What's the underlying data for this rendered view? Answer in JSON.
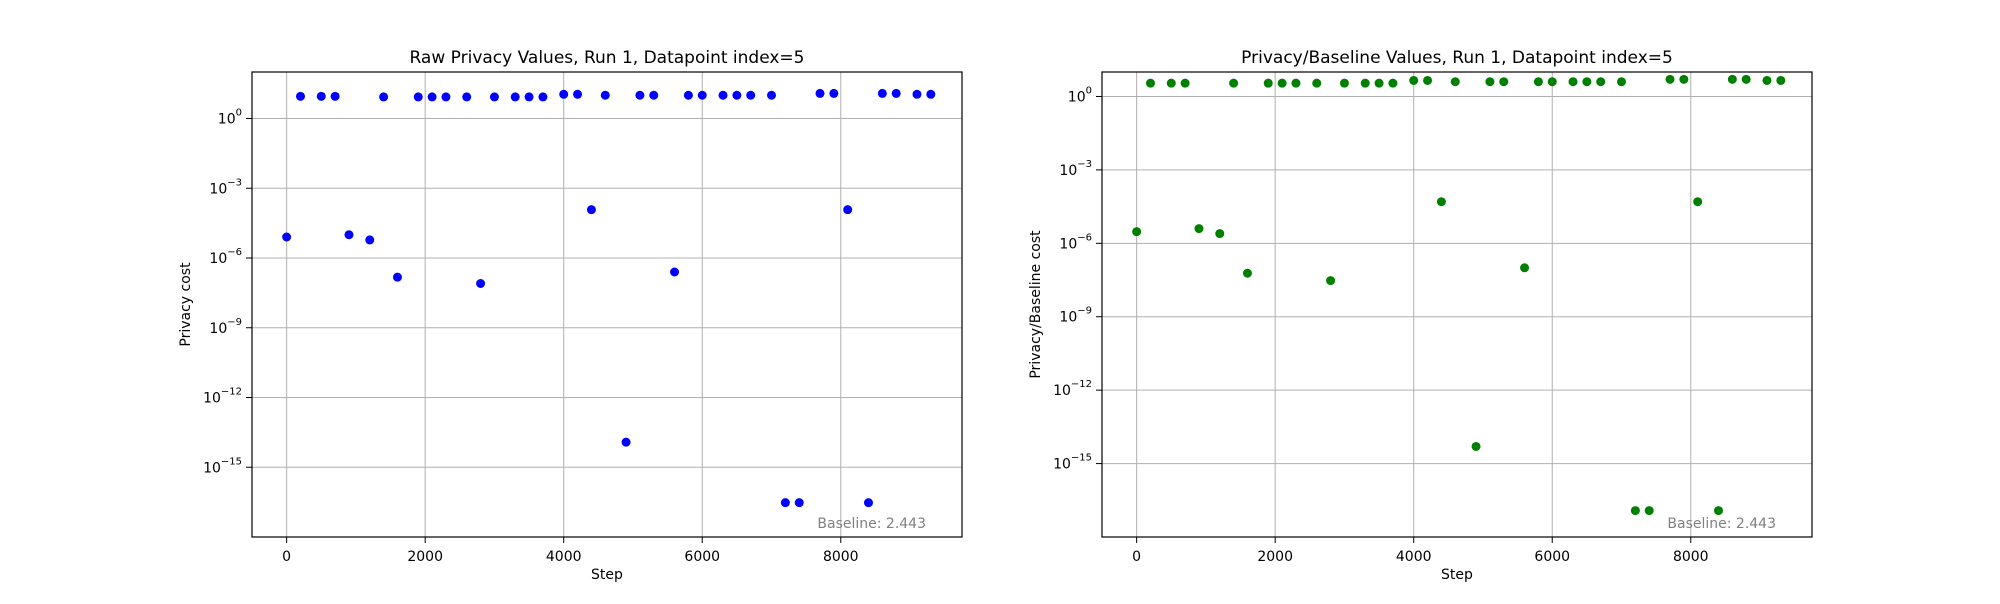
{
  "figure": {
    "background": "#ffffff"
  },
  "chart_data": [
    {
      "type": "scatter",
      "title": "Raw Privacy Values, Run 1, Datapoint index=5",
      "xlabel": "Step",
      "ylabel": "Privacy cost",
      "color": "#0000ff",
      "y_scale": "log",
      "xlim": [
        -500,
        9750
      ],
      "ylim": [
        1e-18,
        100.0
      ],
      "x_ticks": [
        0,
        2000,
        4000,
        6000,
        8000
      ],
      "x_tick_labels": [
        "0",
        "2000",
        "4000",
        "6000",
        "8000"
      ],
      "y_ticks": [
        1e-15,
        1e-12,
        1e-09,
        1e-06,
        0.001,
        1
      ],
      "y_tick_labels": [
        {
          "base": "10",
          "exp": "−15"
        },
        {
          "base": "10",
          "exp": "−12"
        },
        {
          "base": "10",
          "exp": "−9"
        },
        {
          "base": "10",
          "exp": "−6"
        },
        {
          "base": "10",
          "exp": "−3"
        },
        {
          "base": "10",
          "exp": "0"
        }
      ],
      "grid": true,
      "annotation": "Baseline: 2.443",
      "points": [
        {
          "x": 0,
          "y": 8e-06
        },
        {
          "x": 200,
          "y": 9
        },
        {
          "x": 500,
          "y": 9
        },
        {
          "x": 700,
          "y": 9
        },
        {
          "x": 900,
          "y": 1e-05
        },
        {
          "x": 1200,
          "y": 6e-06
        },
        {
          "x": 1400,
          "y": 8.5
        },
        {
          "x": 1600,
          "y": 1.5e-07
        },
        {
          "x": 1900,
          "y": 8.5
        },
        {
          "x": 2100,
          "y": 8.5
        },
        {
          "x": 2300,
          "y": 8.5
        },
        {
          "x": 2600,
          "y": 8.5
        },
        {
          "x": 2800,
          "y": 8e-08
        },
        {
          "x": 3000,
          "y": 8.5
        },
        {
          "x": 3300,
          "y": 8.5
        },
        {
          "x": 3500,
          "y": 8.5
        },
        {
          "x": 3700,
          "y": 8.5
        },
        {
          "x": 4000,
          "y": 11
        },
        {
          "x": 4200,
          "y": 11
        },
        {
          "x": 4400,
          "y": 0.00012
        },
        {
          "x": 4600,
          "y": 10
        },
        {
          "x": 4900,
          "y": 1.2e-14
        },
        {
          "x": 5100,
          "y": 10
        },
        {
          "x": 5300,
          "y": 10
        },
        {
          "x": 5600,
          "y": 2.5e-07
        },
        {
          "x": 5800,
          "y": 10
        },
        {
          "x": 6000,
          "y": 10
        },
        {
          "x": 6300,
          "y": 10
        },
        {
          "x": 6500,
          "y": 10
        },
        {
          "x": 6700,
          "y": 10
        },
        {
          "x": 7000,
          "y": 10
        },
        {
          "x": 7200,
          "y": 3e-17
        },
        {
          "x": 7400,
          "y": 3e-17
        },
        {
          "x": 7700,
          "y": 12
        },
        {
          "x": 7900,
          "y": 12
        },
        {
          "x": 8100,
          "y": 0.00012
        },
        {
          "x": 8400,
          "y": 3e-17
        },
        {
          "x": 8600,
          "y": 12
        },
        {
          "x": 8800,
          "y": 12
        },
        {
          "x": 9100,
          "y": 11
        },
        {
          "x": 9300,
          "y": 11
        }
      ]
    },
    {
      "type": "scatter",
      "title": "Privacy/Baseline Values, Run 1, Datapoint index=5",
      "xlabel": "Step",
      "ylabel": "Privacy/Baseline cost",
      "color": "#008000",
      "y_scale": "log",
      "xlim": [
        -500,
        9750
      ],
      "ylim": [
        1e-18,
        10.0
      ],
      "x_ticks": [
        0,
        2000,
        4000,
        6000,
        8000
      ],
      "x_tick_labels": [
        "0",
        "2000",
        "4000",
        "6000",
        "8000"
      ],
      "y_ticks": [
        1e-15,
        1e-12,
        1e-09,
        1e-06,
        0.001,
        1
      ],
      "y_tick_labels": [
        {
          "base": "10",
          "exp": "−15"
        },
        {
          "base": "10",
          "exp": "−12"
        },
        {
          "base": "10",
          "exp": "−9"
        },
        {
          "base": "10",
          "exp": "−6"
        },
        {
          "base": "10",
          "exp": "−3"
        },
        {
          "base": "10",
          "exp": "0"
        }
      ],
      "grid": true,
      "annotation": "Baseline: 2.443",
      "points": [
        {
          "x": 0,
          "y": 3e-06
        },
        {
          "x": 200,
          "y": 3.5
        },
        {
          "x": 500,
          "y": 3.5
        },
        {
          "x": 700,
          "y": 3.5
        },
        {
          "x": 900,
          "y": 4e-06
        },
        {
          "x": 1200,
          "y": 2.5e-06
        },
        {
          "x": 1400,
          "y": 3.5
        },
        {
          "x": 1600,
          "y": 6e-08
        },
        {
          "x": 1900,
          "y": 3.5
        },
        {
          "x": 2100,
          "y": 3.5
        },
        {
          "x": 2300,
          "y": 3.5
        },
        {
          "x": 2600,
          "y": 3.5
        },
        {
          "x": 2800,
          "y": 3e-08
        },
        {
          "x": 3000,
          "y": 3.5
        },
        {
          "x": 3300,
          "y": 3.5
        },
        {
          "x": 3500,
          "y": 3.5
        },
        {
          "x": 3700,
          "y": 3.5
        },
        {
          "x": 4000,
          "y": 4.5
        },
        {
          "x": 4200,
          "y": 4.5
        },
        {
          "x": 4400,
          "y": 5e-05
        },
        {
          "x": 4600,
          "y": 4
        },
        {
          "x": 4900,
          "y": 5e-15
        },
        {
          "x": 5100,
          "y": 4
        },
        {
          "x": 5300,
          "y": 4
        },
        {
          "x": 5600,
          "y": 1e-07
        },
        {
          "x": 5800,
          "y": 4
        },
        {
          "x": 6000,
          "y": 4
        },
        {
          "x": 6300,
          "y": 4
        },
        {
          "x": 6500,
          "y": 4
        },
        {
          "x": 6700,
          "y": 4
        },
        {
          "x": 7000,
          "y": 4
        },
        {
          "x": 7200,
          "y": 1.2e-17
        },
        {
          "x": 7400,
          "y": 1.2e-17
        },
        {
          "x": 7700,
          "y": 5
        },
        {
          "x": 7900,
          "y": 5
        },
        {
          "x": 8100,
          "y": 5e-05
        },
        {
          "x": 8400,
          "y": 1.2e-17
        },
        {
          "x": 8600,
          "y": 5
        },
        {
          "x": 8800,
          "y": 5
        },
        {
          "x": 9100,
          "y": 4.5
        },
        {
          "x": 9300,
          "y": 4.5
        }
      ]
    }
  ]
}
